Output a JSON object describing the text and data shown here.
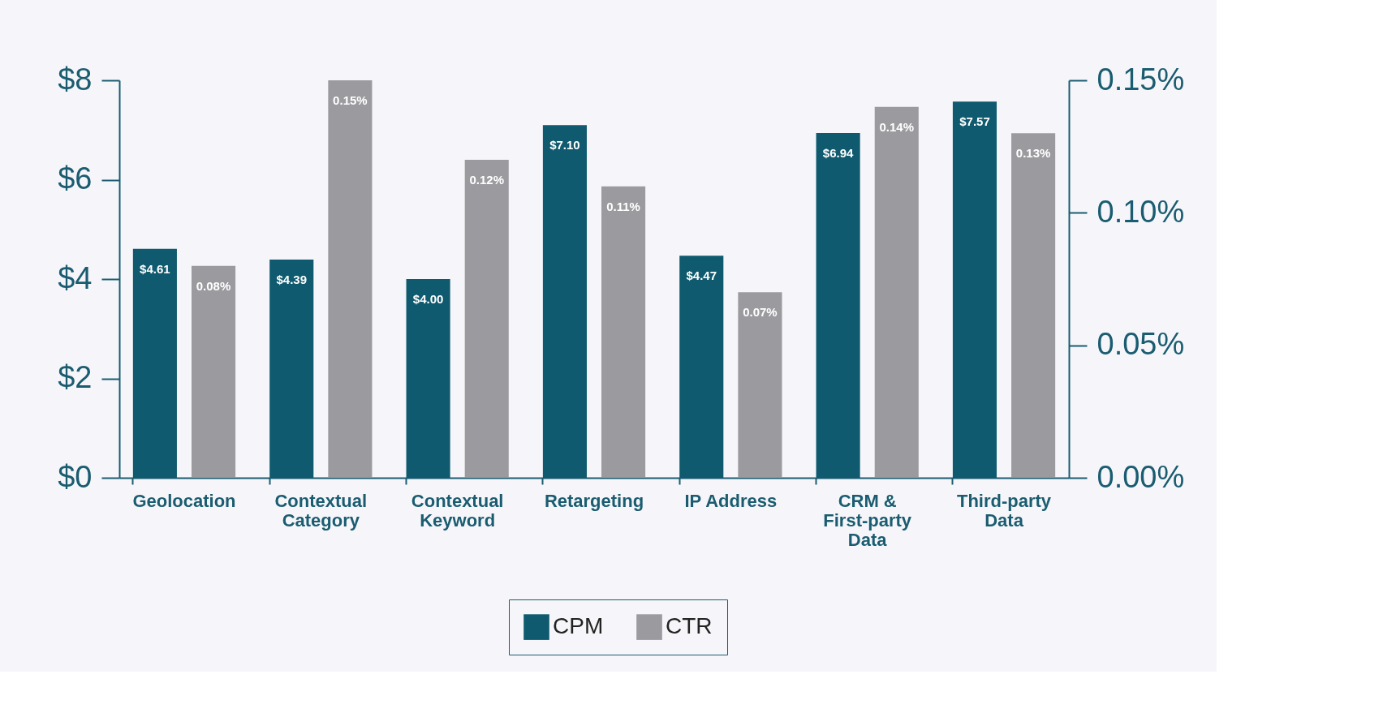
{
  "chart_data": {
    "type": "bar",
    "categories": [
      "Geolocation",
      "Contextual\nCategory",
      "Contextual\nKeyword",
      "Retargeting",
      "IP Address",
      "CRM &\nFirst-party\nData",
      "Third-party\nData"
    ],
    "series": [
      {
        "name": "CPM",
        "color": "#0f5a6e",
        "values": [
          4.61,
          4.39,
          4.0,
          7.1,
          4.47,
          6.94,
          7.57
        ],
        "value_labels": [
          "$4.61",
          "$4.39",
          "$4.00",
          "$7.10",
          "$4.47",
          "$6.94",
          "$7.57"
        ]
      },
      {
        "name": "CTR",
        "color": "#9b9a9f",
        "axis": "y2",
        "values": [
          0.08,
          0.15,
          0.12,
          0.11,
          0.07,
          0.14,
          0.13
        ],
        "value_labels": [
          "0.08%",
          "0.15%",
          "0.12%",
          "0.11%",
          "0.07%",
          "0.14%",
          "0.13%"
        ]
      }
    ],
    "ylim": [
      0,
      8
    ],
    "yticks": [
      {
        "value": 0,
        "label": "$0"
      },
      {
        "value": 2,
        "label": "$2"
      },
      {
        "value": 4,
        "label": "$4"
      },
      {
        "value": 6,
        "label": "$6"
      },
      {
        "value": 8,
        "label": "$8"
      }
    ],
    "y2lim": [
      0,
      0.15
    ],
    "y2ticks": [
      {
        "value": 0,
        "label": "0.00%"
      },
      {
        "value": 0.05,
        "label": "0.05%"
      },
      {
        "value": 0.1,
        "label": "0.10%"
      },
      {
        "value": 0.15,
        "label": "0.15%"
      }
    ],
    "grid": false,
    "legend": "bottom"
  }
}
